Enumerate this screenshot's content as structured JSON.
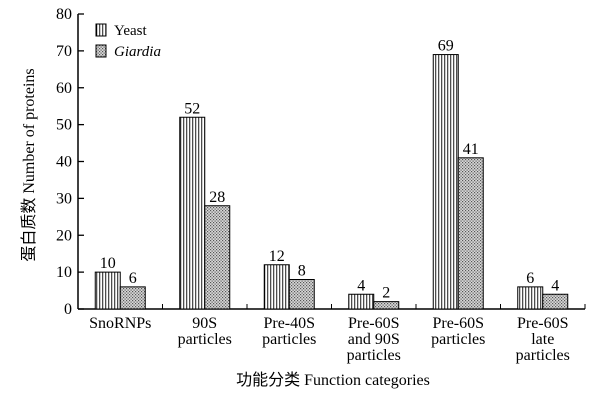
{
  "chart_data": {
    "type": "bar",
    "categories": [
      [
        "SnoRNPs"
      ],
      [
        "90S",
        "particles"
      ],
      [
        "Pre-40S",
        "particles"
      ],
      [
        "Pre-60S",
        "and 90S",
        "particles"
      ],
      [
        "Pre-60S",
        "particles"
      ],
      [
        "Pre-60S",
        "late",
        "particles"
      ]
    ],
    "series": [
      {
        "name": "Yeast",
        "values": [
          10,
          52,
          12,
          4,
          69,
          6
        ],
        "pattern": "vertical-stripes"
      },
      {
        "name": "Giardia",
        "values": [
          6,
          28,
          8,
          2,
          41,
          4
        ],
        "pattern": "dots",
        "italic": true
      }
    ],
    "xlabel": "功能分类  Function categories",
    "ylabel": "蛋白质数  Number of proteins",
    "ylim": [
      0,
      80
    ],
    "yticks": [
      0,
      10,
      20,
      30,
      40,
      50,
      60,
      70,
      80
    ],
    "legend_position": "top-left",
    "grid": false,
    "colors": {
      "yeast": "#ffffff",
      "giardia": "#b8b8b8",
      "ink": "#000000"
    }
  }
}
